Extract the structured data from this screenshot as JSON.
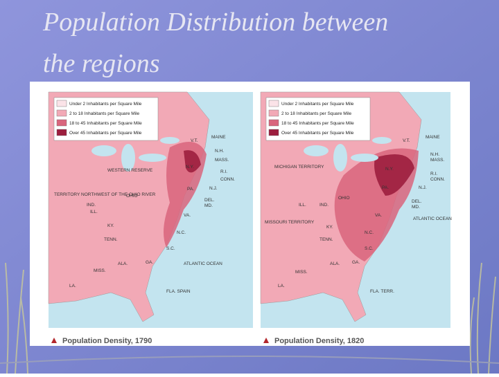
{
  "title": "Population Distribution between the regions",
  "maps": [
    {
      "legend": [
        "Under 2 Inhabitants per Square Mile",
        "2 to 18 Inhabitants per Square Mile",
        "18 to 45 Inhabitants per Square Mile",
        "Over 45 Inhabitants per Square Mile"
      ],
      "caption": "Population Density, 1790",
      "labels": [
        "MAINE",
        "V.T.",
        "N.H.",
        "MASS.",
        "N.Y.",
        "R.I.",
        "CONN.",
        "WESTERN RESERVE",
        "PA.",
        "N.J.",
        "TERRITORY NORTHWEST OF THE OHIO RIVER",
        "OHIO",
        "IND.",
        "ILL.",
        "DEL.",
        "MD.",
        "VA.",
        "KY.",
        "N.C.",
        "TENN.",
        "S.C.",
        "GA.",
        "ATLANTIC OCEAN",
        "MISS.",
        "ALA.",
        "LA.",
        "FLA. SPAIN"
      ]
    },
    {
      "legend": [
        "Under 2 Inhabitants per Square Mile",
        "2 to 18 Inhabitants per Square Mile",
        "18 to 45 Inhabitants per Square Mile",
        "Over 45 Inhabitants per Square Mile"
      ],
      "caption": "Population Density, 1820",
      "labels": [
        "MAINE",
        "V.T.",
        "N.H.",
        "MASS.",
        "MICHIGAN TERRITORY",
        "N.Y.",
        "R.I.",
        "CONN.",
        "PA.",
        "N.J.",
        "OHIO",
        "ILL.",
        "IND.",
        "DEL.",
        "MD.",
        "MISSOURI TERRITORY",
        "ATLANTIC OCEAN",
        "KY.",
        "VA.",
        "N.C.",
        "TENN.",
        "S.C.",
        "ALA.",
        "GA.",
        "MISS.",
        "LA.",
        "FLA. TERR."
      ]
    }
  ]
}
